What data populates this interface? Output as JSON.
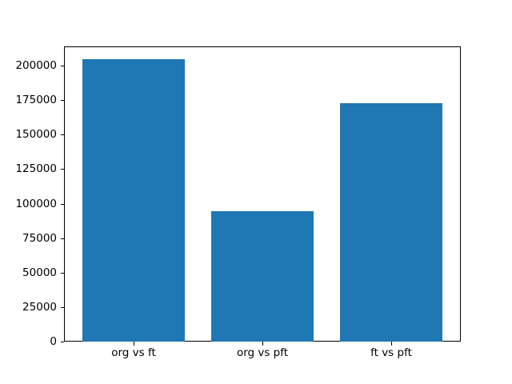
{
  "chart_data": {
    "type": "bar",
    "categories": [
      "org vs ft",
      "org vs pft",
      "ft vs pft"
    ],
    "values": [
      205000,
      95000,
      173000
    ],
    "title": "",
    "xlabel": "",
    "ylabel": "",
    "ylim": [
      0,
      214600
    ],
    "yticks": [
      0,
      25000,
      50000,
      75000,
      100000,
      125000,
      150000,
      175000,
      200000
    ],
    "grid": false,
    "legend": null
  },
  "colors": {
    "background": "#ffffff",
    "bar": "#1f77b4",
    "axis": "#000000",
    "text": "#000000"
  }
}
